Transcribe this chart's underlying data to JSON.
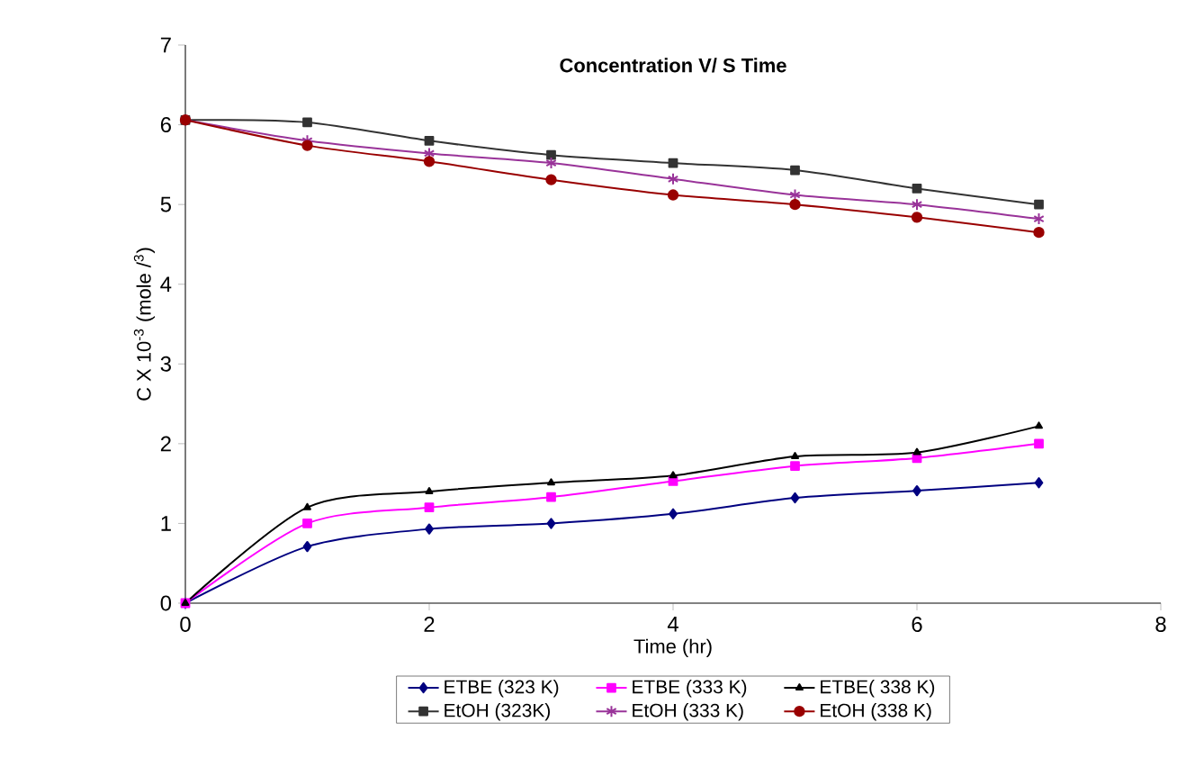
{
  "chart_data": {
    "type": "line",
    "title": "Concentration V/ S Time",
    "xlabel": "Time (hr)",
    "ylabel": "C X 10$^{-3}$ (mole /$^{3}$)",
    "x": [
      0,
      1,
      2,
      3,
      4,
      5,
      6,
      7
    ],
    "xlim": [
      0,
      8
    ],
    "xticks": [
      0,
      2,
      4,
      6,
      8
    ],
    "ylim": [
      0,
      7
    ],
    "yticks": [
      0,
      1,
      2,
      3,
      4,
      5,
      6,
      7
    ],
    "legend": "bottom",
    "line_style": "solid",
    "series": [
      {
        "name": "ETBE (323 K)",
        "color": "#000080",
        "marker": "diamond",
        "values": [
          0,
          0.71,
          0.93,
          1.0,
          1.12,
          1.32,
          1.41,
          1.51
        ]
      },
      {
        "name": "ETBE (333 K)",
        "color": "#ff00ff",
        "marker": "square",
        "values": [
          0,
          1.0,
          1.2,
          1.33,
          1.53,
          1.72,
          1.82,
          2.0
        ]
      },
      {
        "name": "ETBE( 338 K)",
        "color": "#000000",
        "marker": "triangle",
        "values": [
          0,
          1.2,
          1.4,
          1.51,
          1.6,
          1.84,
          1.89,
          2.22
        ]
      },
      {
        "name": "EtOH (323K)",
        "color": "#333333",
        "marker": "square",
        "values": [
          6.06,
          6.03,
          5.8,
          5.62,
          5.52,
          5.43,
          5.2,
          5.0
        ]
      },
      {
        "name": "EtOH (333 K)",
        "color": "#993399",
        "marker": "cross",
        "values": [
          6.06,
          5.8,
          5.64,
          5.52,
          5.32,
          5.12,
          5.0,
          4.82
        ]
      },
      {
        "name": "EtOH (338 K)",
        "color": "#990000",
        "marker": "circle",
        "values": [
          6.06,
          5.74,
          5.54,
          5.31,
          5.12,
          5.0,
          4.84,
          4.65
        ]
      }
    ]
  }
}
